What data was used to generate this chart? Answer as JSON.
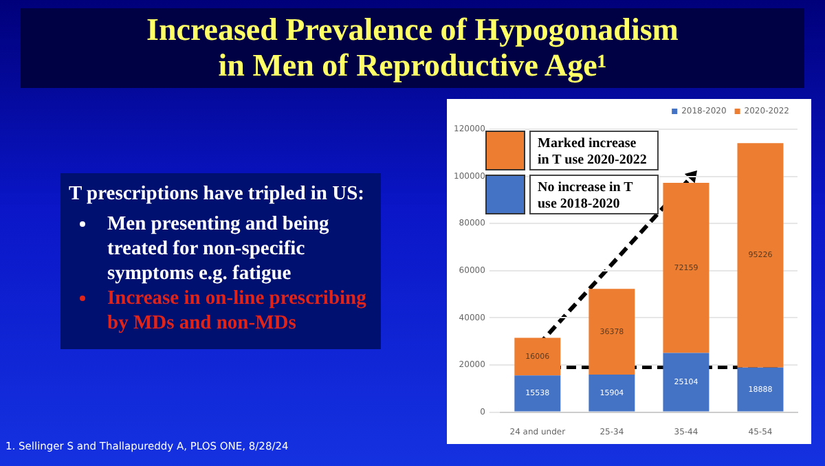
{
  "chart_data": {
    "type": "bar",
    "title": "Increased Prevalence of Hypogonadism in Men of Reproductive Age¹",
    "categories": [
      "24 and under",
      "25-34",
      "35-44",
      "45-54"
    ],
    "series": [
      {
        "name": "2018-2020",
        "color": "#4472c4",
        "values": [
          15538,
          15904,
          25104,
          18888
        ]
      },
      {
        "name": "2020-2022",
        "color": "#ed7d31",
        "values": [
          16006,
          36378,
          72159,
          95226
        ]
      }
    ],
    "stacked": true,
    "data_labels": true,
    "ylim": [
      0,
      120000
    ],
    "yticks": [
      0,
      20000,
      40000,
      60000,
      80000,
      100000,
      120000
    ],
    "grid": "y",
    "legend": "top right",
    "annotations": [
      "Marked increase in T use 2020-2022",
      "No increase in T use 2018-2020",
      "T prescriptions have tripled in US:",
      "Men presenting and being treated for non-specific symptoms e.g. fatigue",
      "Increase in on-line prescribing by MDs and non-MDs",
      "1. Sellinger S and Thallapureddy A, PLOS ONE, 8/28/24"
    ]
  }
}
